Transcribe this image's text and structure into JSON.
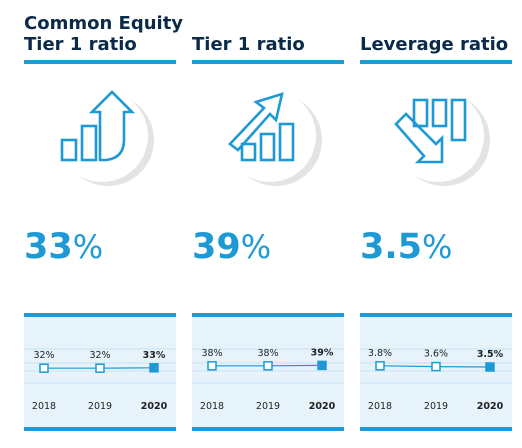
{
  "colors": {
    "accent": "#1d9ad6",
    "title": "#0b2a4a",
    "panel": "#e6f3fb",
    "icon_shadow": "#e4e4e4"
  },
  "columns": [
    {
      "title_line1": "Common Equity",
      "title_line2": "Tier 1 ratio",
      "value_number": "33",
      "value_unit": "%",
      "icon": "bar-chart-up-arrow-icon"
    },
    {
      "title_line1": "",
      "title_line2": "Tier 1 ratio",
      "value_number": "39",
      "value_unit": "%",
      "icon": "bar-chart-diagonal-up-arrow-icon"
    },
    {
      "title_line1": "",
      "title_line2": "Leverage ratio",
      "value_number": "3.5",
      "value_unit": "%",
      "icon": "bar-chart-down-arrow-icon"
    }
  ],
  "chart_data": [
    {
      "type": "line",
      "title": "Common Equity Tier 1 ratio",
      "categories": [
        "2018",
        "2019",
        "2020"
      ],
      "values": [
        32,
        32,
        33
      ],
      "value_labels": [
        "32%",
        "32%",
        "33%"
      ],
      "ylim": [
        0,
        100
      ],
      "highlight_last": true,
      "grid": true
    },
    {
      "type": "line",
      "title": "Tier 1 ratio",
      "categories": [
        "2018",
        "2019",
        "2020"
      ],
      "values": [
        38,
        38,
        39
      ],
      "value_labels": [
        "38%",
        "38%",
        "39%"
      ],
      "ylim": [
        0,
        100
      ],
      "highlight_last": true,
      "grid": true
    },
    {
      "type": "line",
      "title": "Leverage ratio",
      "categories": [
        "2018",
        "2019",
        "2020"
      ],
      "values": [
        3.8,
        3.6,
        3.5
      ],
      "value_labels": [
        "3.8%",
        "3.6%",
        "3.5%"
      ],
      "ylim": [
        0,
        10
      ],
      "highlight_last": true,
      "grid": true
    }
  ]
}
